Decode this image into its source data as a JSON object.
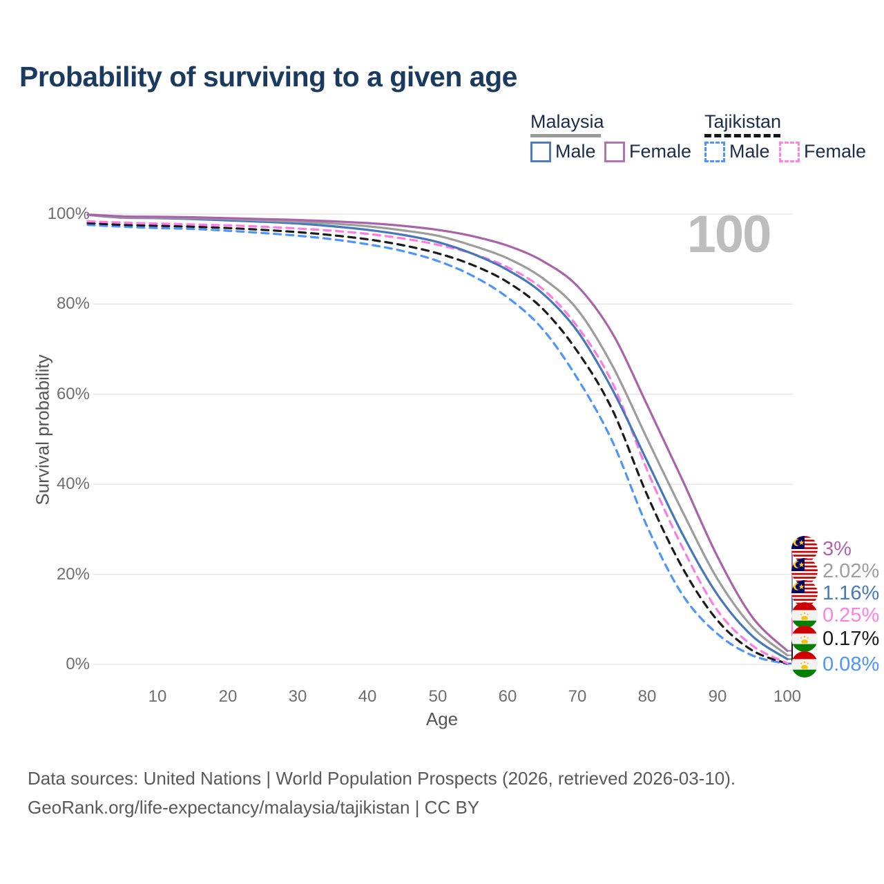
{
  "title": "Probability of surviving to a given age",
  "watermark": "100",
  "legend": {
    "groups": [
      {
        "label": "Malaysia",
        "line_color": "#999999",
        "line_style": "solid",
        "items": [
          {
            "label": "Male",
            "color": "#4a7ebc"
          },
          {
            "label": "Female",
            "color": "#b472b4"
          }
        ]
      },
      {
        "label": "Tajikistan",
        "line_color": "#161616",
        "line_style": "dashed",
        "items": [
          {
            "label": "Male",
            "color": "#4d94ff"
          },
          {
            "label": "Female",
            "color": "#ff85e3"
          }
        ]
      }
    ]
  },
  "chart_data": {
    "type": "line",
    "title": "Probability of surviving to a given age",
    "xlabel": "Age",
    "ylabel": "Survival probability",
    "xlim": [
      0,
      100
    ],
    "ylim": [
      0,
      100
    ],
    "grid": "horizontal",
    "x_ticks": [
      10,
      20,
      30,
      40,
      50,
      60,
      70,
      80,
      90,
      100
    ],
    "y_ticks": [
      "0%",
      "20%",
      "40%",
      "60%",
      "80%",
      "100%"
    ],
    "x": [
      0,
      5,
      10,
      15,
      20,
      25,
      30,
      35,
      40,
      45,
      50,
      55,
      60,
      65,
      70,
      75,
      80,
      85,
      90,
      95,
      100
    ],
    "series": [
      {
        "name": "Malaysia Female",
        "color": "#a963a9",
        "dash": false,
        "flag": "malaysia",
        "end_label": "3%",
        "values": [
          99.9,
          99.5,
          99.4,
          99.3,
          99.1,
          98.9,
          98.7,
          98.4,
          98.0,
          97.4,
          96.5,
          95.1,
          93.0,
          89.6,
          84.0,
          73.5,
          57.5,
          41.0,
          24.0,
          10.5,
          3.0
        ]
      },
      {
        "name": "Malaysia (both sexes)",
        "color": "#9c9c9c",
        "dash": false,
        "flag": "malaysia",
        "end_label": "2.02%",
        "values": [
          99.8,
          99.3,
          99.2,
          99.1,
          98.9,
          98.6,
          98.3,
          97.9,
          97.3,
          96.4,
          95.2,
          93.0,
          90.2,
          85.8,
          78.8,
          66.3,
          50.0,
          34.0,
          19.0,
          8.3,
          2.02
        ]
      },
      {
        "name": "Malaysia Male",
        "color": "#4477bb",
        "dash": false,
        "flag": "malaysia",
        "end_label": "1.16%",
        "values": [
          99.8,
          99.2,
          99.1,
          98.9,
          98.6,
          98.3,
          97.9,
          97.3,
          96.5,
          95.4,
          93.8,
          91.2,
          87.6,
          82.4,
          74.0,
          61.0,
          45.0,
          29.0,
          15.5,
          6.3,
          1.16
        ]
      },
      {
        "name": "Tajikistan Female",
        "color": "#ff7ae1",
        "dash": true,
        "flag": "tajikistan",
        "end_label": "0.25%",
        "values": [
          98.4,
          98.1,
          97.9,
          97.7,
          97.5,
          97.2,
          96.8,
          96.3,
          95.6,
          94.6,
          93.2,
          91.2,
          88.2,
          83.4,
          75.0,
          62.5,
          43.0,
          26.0,
          12.0,
          4.2,
          0.25
        ]
      },
      {
        "name": "Tajikistan (both sexes)",
        "color": "#1a1a1a",
        "dash": true,
        "flag": "tajikistan",
        "end_label": "0.17%",
        "values": [
          98.0,
          97.6,
          97.4,
          97.2,
          96.9,
          96.5,
          96.0,
          95.3,
          94.4,
          93.1,
          91.3,
          88.7,
          84.9,
          79.0,
          69.5,
          56.5,
          37.5,
          21.5,
          9.8,
          3.1,
          0.17
        ]
      },
      {
        "name": "Tajikistan Male",
        "color": "#4d94ff",
        "dash": true,
        "flag": "tajikistan",
        "end_label": "0.08%",
        "values": [
          97.6,
          97.2,
          96.9,
          96.7,
          96.3,
          95.8,
          95.2,
          94.4,
          93.3,
          91.8,
          89.6,
          86.3,
          81.5,
          74.5,
          63.5,
          49.5,
          30.5,
          15.5,
          6.8,
          2.0,
          0.08
        ]
      }
    ]
  },
  "footer": {
    "line1": "Data sources: United Nations | World Population Prospects (2026, retrieved 2026-03-10).",
    "line2": "GeoRank.org/life-expectancy/malaysia/tajikistan | CC BY"
  }
}
